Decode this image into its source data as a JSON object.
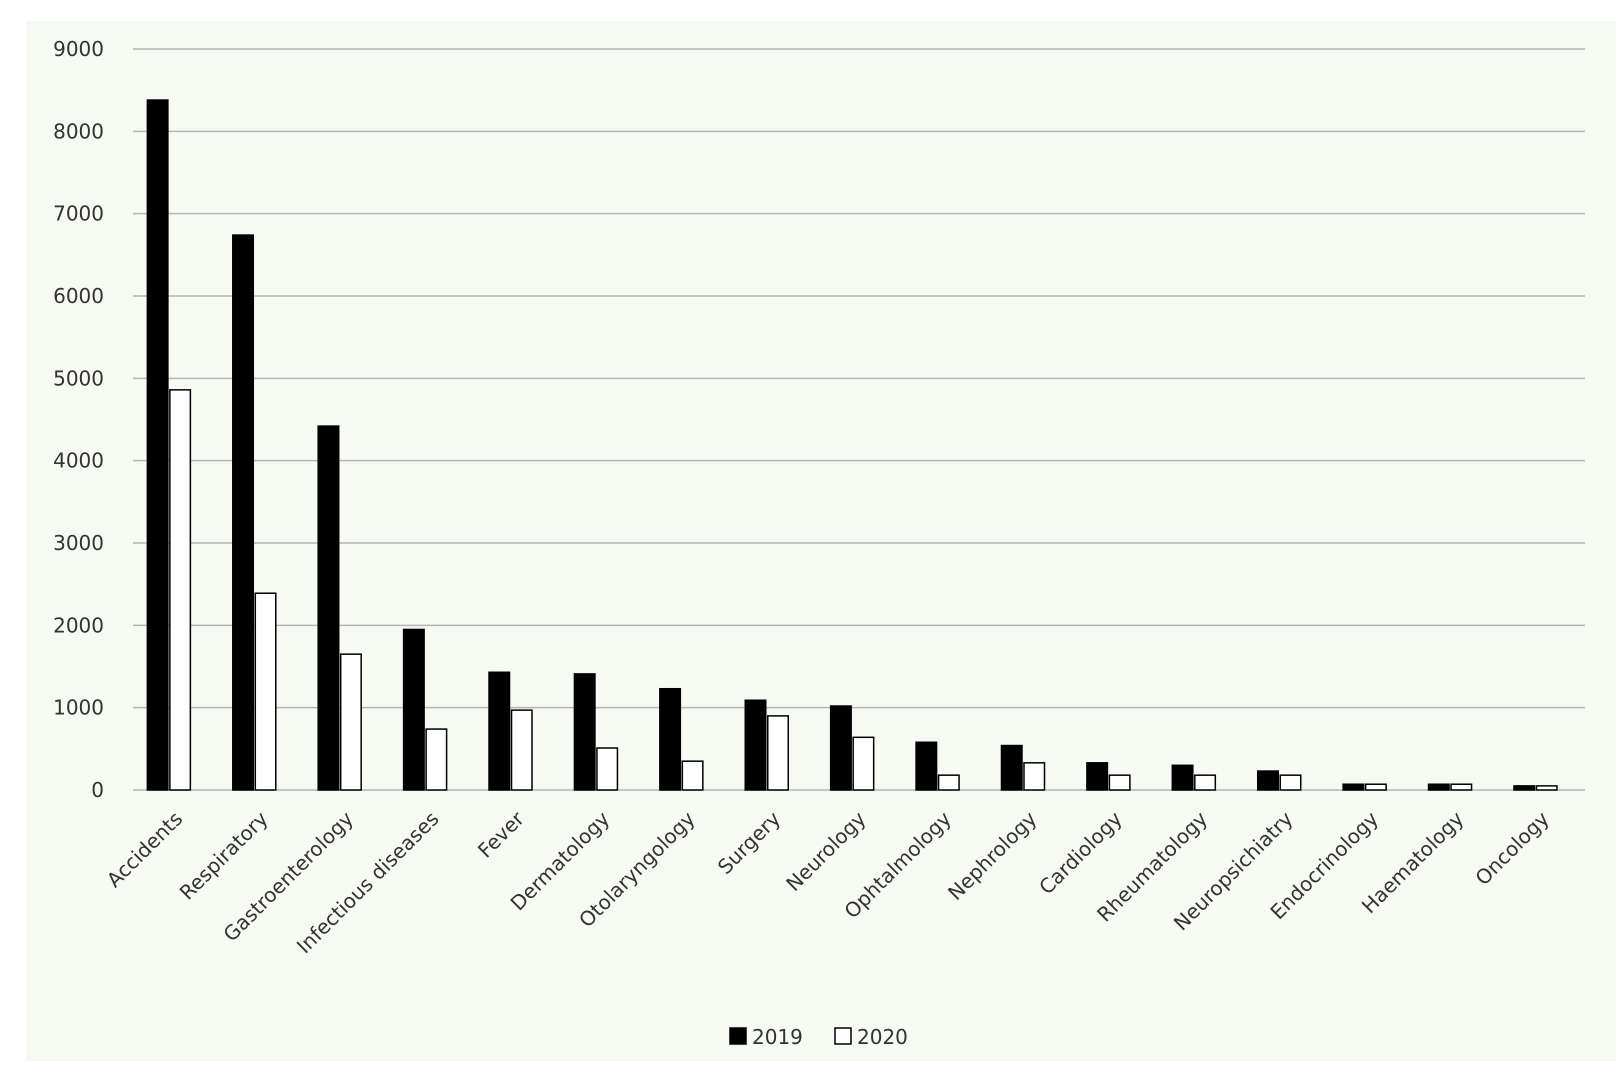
{
  "chart_data": {
    "type": "bar",
    "categories": [
      "Accidents",
      "Respiratory",
      "Gastroenterology",
      "Infectious diseases",
      "Fever",
      "Dermatology",
      "Otolaryngology",
      "Surgery",
      "Neurology",
      "Ophtalmology",
      "Nephrology",
      "Cardiology",
      "Rheumatology",
      "Neuropsichiatry",
      "Endocrinology",
      "Haematology",
      "Oncology"
    ],
    "series": [
      {
        "name": "2019",
        "color": "#000000",
        "values": [
          8380,
          6740,
          4420,
          1950,
          1430,
          1410,
          1230,
          1090,
          1020,
          580,
          540,
          330,
          300,
          230,
          70,
          70,
          50
        ]
      },
      {
        "name": "2020",
        "color": "#ffffff",
        "values": [
          4860,
          2390,
          1650,
          740,
          970,
          510,
          350,
          900,
          640,
          180,
          330,
          180,
          180,
          180,
          70,
          70,
          50
        ]
      }
    ],
    "ylim": [
      0,
      9000
    ],
    "yticks": [
      0,
      1000,
      2000,
      3000,
      4000,
      5000,
      6000,
      7000,
      8000,
      9000
    ],
    "grid": true,
    "legend": "bottom"
  }
}
